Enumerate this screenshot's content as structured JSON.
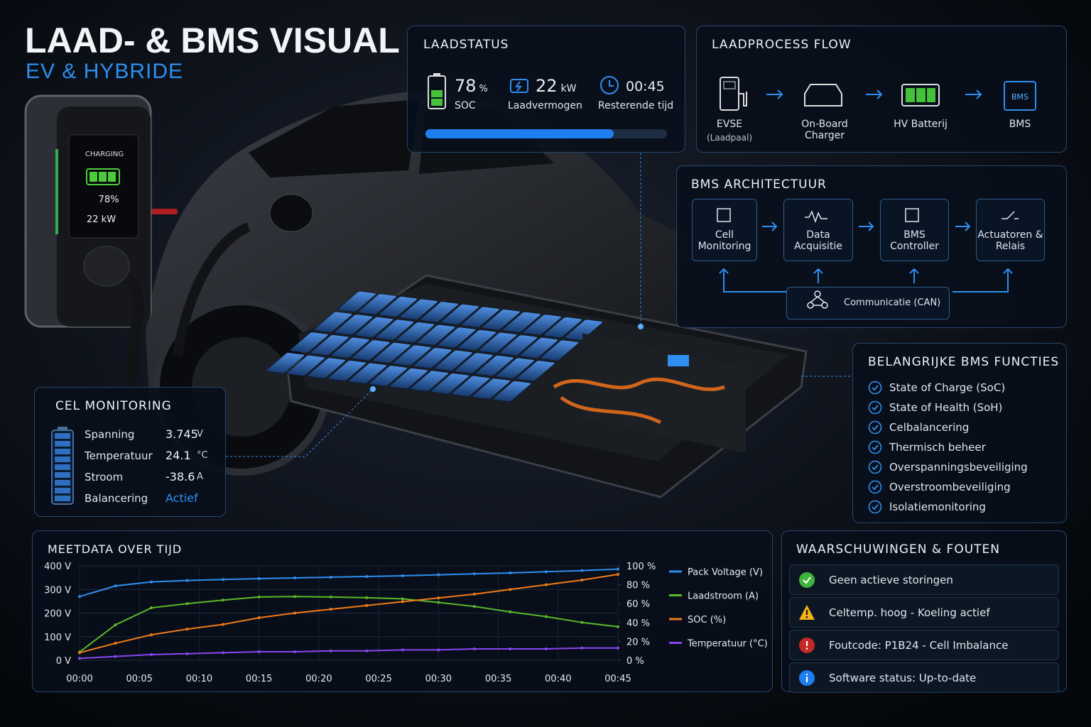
{
  "header": {
    "title": "LAAD- & BMS VISUAL",
    "subtitle": "EV & HYBRIDE"
  },
  "charger_screen": {
    "status": "CHARGING",
    "soc": "78%",
    "power": "22 kW"
  },
  "laadstatus": {
    "title": "LAADSTATUS",
    "soc": {
      "value": 78,
      "unit": "%",
      "label": "SOC"
    },
    "power": {
      "value": 22,
      "unit": "kW",
      "label": "Laadvermogen"
    },
    "time": {
      "value": "00:45",
      "label": "Resterende tijd"
    }
  },
  "flow": {
    "title": "LAADPROCESS FLOW",
    "nodes": [
      {
        "label": "EVSE",
        "sublabel": "(Laadpaal)"
      },
      {
        "label": "On-Board Charger"
      },
      {
        "label": "HV Batterij"
      },
      {
        "label": "BMS",
        "icon_label": "BMS"
      }
    ]
  },
  "architecture": {
    "title": "BMS ARCHITECTUUR",
    "nodes": [
      "Cell Monitoring",
      "Data Acquisitie",
      "BMS Controller",
      "Actuatoren & Relais"
    ],
    "bus": "Communicatie (CAN)"
  },
  "cell_monitoring": {
    "title": "CEL MONITORING",
    "rows": [
      {
        "label": "Spanning",
        "value": 3.745,
        "unit": "V"
      },
      {
        "label": "Temperatuur",
        "value": 24.1,
        "unit": "°C"
      },
      {
        "label": "Stroom",
        "value": -38.6,
        "unit": "A"
      },
      {
        "label": "Balancering",
        "value": "Actief"
      }
    ]
  },
  "functions": {
    "title": "BELANGRIJKE BMS FUNCTIES",
    "items": [
      "State of Charge (SoC)",
      "State of Health (SoH)",
      "Celbalancering",
      "Thermisch beheer",
      "Overspanningsbeveiliging",
      "Overstroombeveiliging",
      "Isolatiemonitoring"
    ]
  },
  "warnings": {
    "title": "WAARSCHUWINGEN & FOUTEN",
    "items": [
      {
        "text": "Geen actieve storingen",
        "icon": "check"
      },
      {
        "text": "Celtemp. hoog - Koeling actief",
        "icon": "warning"
      },
      {
        "text": "Foutcode: P1B24 - Cell Imbalance",
        "icon": "error"
      },
      {
        "text": "Software status: Up-to-date",
        "icon": "info"
      }
    ]
  },
  "chart_data": {
    "type": "line",
    "title": "MEETDATA OVER TIJD",
    "x": [
      0,
      3,
      6,
      9,
      12,
      15,
      18,
      21,
      24,
      27,
      30,
      33,
      36,
      39,
      42,
      45
    ],
    "xlim": [
      0,
      45
    ],
    "xticks": [
      {
        "value": 0,
        "label": "00:00"
      },
      {
        "value": 5,
        "label": "00:05"
      },
      {
        "value": 10,
        "label": "00:10"
      },
      {
        "value": 15,
        "label": "00:15"
      },
      {
        "value": 20,
        "label": "00:20"
      },
      {
        "value": 25,
        "label": "00:25"
      },
      {
        "value": 30,
        "label": "00:30"
      },
      {
        "value": 35,
        "label": "00:35"
      },
      {
        "value": 40,
        "label": "00:40"
      },
      {
        "value": 45,
        "label": "00:45"
      }
    ],
    "ylim": [
      0,
      400
    ],
    "yticks": [
      {
        "value": 0,
        "label": "0 V"
      },
      {
        "value": 100,
        "label": "100 V"
      },
      {
        "value": 200,
        "label": "200 V"
      },
      {
        "value": 300,
        "label": "300 V"
      },
      {
        "value": 400,
        "label": "400 V"
      }
    ],
    "y2lim": [
      0,
      100
    ],
    "y2ticks": [
      {
        "value": 0,
        "label": "0 %"
      },
      {
        "value": 20,
        "label": "20 %"
      },
      {
        "value": 40,
        "label": "40 %"
      },
      {
        "value": 60,
        "label": "60 %"
      },
      {
        "value": 80,
        "label": "80 %"
      },
      {
        "value": 100,
        "label": "100 %"
      }
    ],
    "grid": true,
    "series": [
      {
        "name": "Pack Voltage (V)",
        "color": "#2f8ef0",
        "values": [
          270,
          315,
          332,
          338,
          342,
          346,
          349,
          352,
          355,
          358,
          362,
          366,
          370,
          375,
          380,
          386
        ]
      },
      {
        "name": "Laadstroom (A)",
        "color": "#5cb82a",
        "values": [
          35,
          150,
          222,
          240,
          255,
          268,
          270,
          268,
          265,
          260,
          245,
          228,
          205,
          185,
          160,
          142
        ]
      },
      {
        "name": "SOC (%)",
        "color": "#f07a1a",
        "axis": "y2",
        "values": [
          8,
          18,
          27,
          33,
          38,
          45,
          50,
          54,
          58,
          62,
          66,
          70,
          75,
          80,
          85,
          91
        ]
      },
      {
        "name": "Temperatuur (°C)",
        "color": "#8a44f0",
        "axis": "y2",
        "values": [
          2,
          4,
          6,
          7,
          8,
          9,
          9,
          10,
          10,
          11,
          11,
          12,
          12,
          12,
          13,
          13
        ]
      }
    ]
  }
}
